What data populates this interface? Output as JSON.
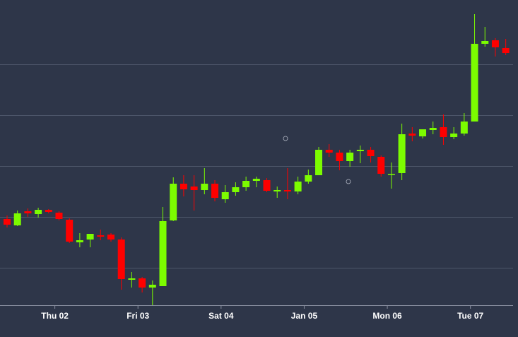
{
  "chart_data": {
    "type": "candlestick",
    "open": [
      122,
      113,
      133,
      129,
      135,
      131,
      121,
      89,
      93,
      99,
      100,
      93,
      36,
      38,
      25,
      27,
      120,
      172,
      168,
      163,
      172,
      150,
      160,
      167,
      176,
      177,
      161,
      163,
      161,
      175,
      184,
      220,
      216,
      204,
      218,
      220,
      210,
      185,
      187,
      243,
      239,
      248,
      252,
      238,
      243,
      260,
      370,
      375,
      364
    ],
    "close": [
      114,
      130,
      130,
      135,
      132,
      122,
      90,
      92,
      101,
      97,
      93,
      37,
      38,
      25,
      29,
      119,
      172,
      164,
      163,
      172,
      152,
      160,
      167,
      176,
      179,
      162,
      163,
      161,
      175,
      184,
      220,
      216,
      204,
      216,
      220,
      211,
      186,
      186,
      242,
      240,
      249,
      251,
      238,
      243,
      260,
      370,
      374,
      365,
      357
    ],
    "high": [
      127,
      134,
      137,
      138,
      136,
      133,
      123,
      102,
      101,
      107,
      102,
      96,
      47,
      40,
      35,
      139,
      181,
      184,
      184,
      194,
      177,
      170,
      174,
      182,
      182,
      180,
      168,
      194,
      182,
      192,
      224,
      228,
      220,
      220,
      226,
      224,
      212,
      202,
      257,
      252,
      249,
      260,
      270,
      252,
      272,
      412,
      394,
      378,
      377
    ],
    "low": [
      110,
      112,
      125,
      124,
      130,
      120,
      88,
      82,
      82,
      92,
      90,
      22,
      25,
      18,
      0,
      27,
      119,
      154,
      134,
      157,
      147,
      145,
      155,
      162,
      167,
      160,
      152,
      150,
      157,
      172,
      184,
      210,
      191,
      196,
      201,
      202,
      182,
      165,
      177,
      232,
      236,
      242,
      227,
      235,
      240,
      260,
      366,
      352,
      354
    ],
    "up_color": "#7cfc00",
    "down_color": "#ff0000",
    "ylim": [
      0,
      432
    ],
    "yticks": [
      53,
      125,
      197,
      269,
      341
    ],
    "grid": true,
    "xlim": [
      -0.68,
      49.18
    ],
    "xticks": [
      {
        "value": 4.6,
        "label": "Thu 02"
      },
      {
        "value": 12.6,
        "label": "Fri 03"
      },
      {
        "value": 20.6,
        "label": "Sat 04"
      },
      {
        "value": 28.6,
        "label": "Jan 05"
      },
      {
        "value": 36.6,
        "label": "Mon 06"
      },
      {
        "value": 44.6,
        "label": "Tue 07"
      }
    ]
  }
}
